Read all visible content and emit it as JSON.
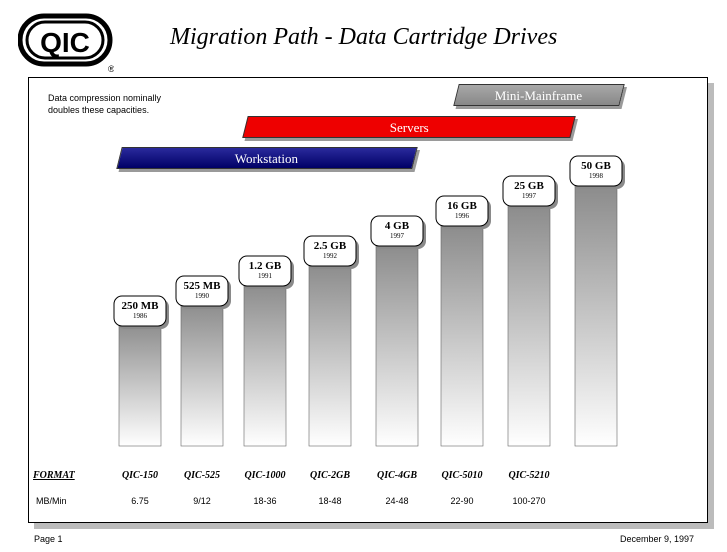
{
  "header": {
    "title": "Migration Path - Data Cartridge Drives",
    "logo_text": "QIC",
    "logo_mark": "®"
  },
  "note": {
    "line1": "Data compression nominally",
    "line2": "doubles these capacities."
  },
  "bands": {
    "mini": "Mini-Mainframe",
    "servers": "Servers",
    "workstation": "Workstation"
  },
  "table": {
    "format_label": "FORMAT",
    "mbmin_label": "MB/Min"
  },
  "footer": {
    "page": "Page 1",
    "date": "December 9, 1997"
  },
  "colors": {
    "servers": "#ee0000",
    "workstation": "#000066",
    "mini": "#999999"
  },
  "chart_data": {
    "type": "bar",
    "title": "Migration Path - Data Cartridge Drives",
    "categories": [
      "QIC-150",
      "QIC-525",
      "QIC-1000",
      "QIC-2GB",
      "QIC-4GB",
      "QIC-5010",
      "QIC-5210",
      ""
    ],
    "capacity_labels": [
      "250 MB",
      "525 MB",
      "1.2 GB",
      "2.5 GB",
      "4 GB",
      "16 GB",
      "25 GB",
      "50 GB"
    ],
    "years": [
      "1986",
      "1990",
      "1991",
      "1992",
      "1997",
      "1996",
      "1997",
      "1998"
    ],
    "mb_min": [
      "6.75",
      "9/12",
      "18-36",
      "18-48",
      "24-48",
      "22-90",
      "100-270",
      ""
    ],
    "bar_rank": [
      1,
      2,
      3,
      4,
      5,
      6,
      7,
      8
    ],
    "scale": "rank (not proportional)"
  }
}
